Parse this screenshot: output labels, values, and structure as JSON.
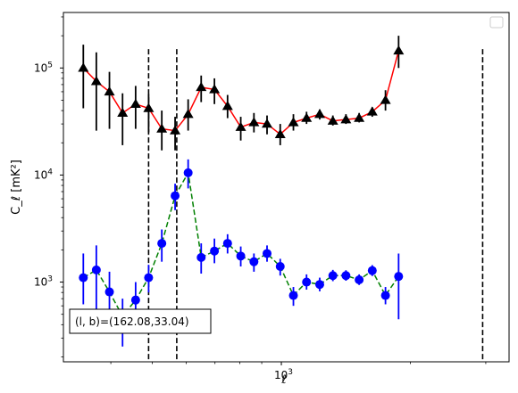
{
  "chart_data": {
    "type": "line",
    "xlabel": "ℓ",
    "ylabel": "C_ℓ  [mK²]",
    "x_scale": "log",
    "y_scale": "log",
    "xlim": [
      310,
      3400
    ],
    "ylim": [
      180,
      330000
    ],
    "x_tick_labels": [
      {
        "value": 1000,
        "label": "10",
        "exponent": "3"
      }
    ],
    "y_tick_labels": [
      {
        "value": 1000,
        "label": "10",
        "exponent": "3"
      },
      {
        "value": 10000,
        "label": "10",
        "exponent": "4"
      },
      {
        "value": 100000,
        "label": "10",
        "exponent": "5"
      }
    ],
    "legend": {
      "placement": "top-right",
      "entries": []
    },
    "vlines": [
      490,
      570,
      2950
    ],
    "annotation": "(l, b)=(162.08,33.04)",
    "series": [
      {
        "color": "#ff0000",
        "marker": "triangle",
        "marker_color": "#000000",
        "linestyle": "solid",
        "points": [
          {
            "x": 345,
            "y": 100000,
            "lo": 42000,
            "hi": 165000
          },
          {
            "x": 370,
            "y": 75000,
            "lo": 26000,
            "hi": 140000
          },
          {
            "x": 397,
            "y": 60000,
            "lo": 27000,
            "hi": 92000
          },
          {
            "x": 426,
            "y": 38000,
            "lo": 19000,
            "hi": 58000
          },
          {
            "x": 457,
            "y": 46000,
            "lo": 27000,
            "hi": 68000
          },
          {
            "x": 490,
            "y": 42000,
            "lo": 25000,
            "hi": 57000
          },
          {
            "x": 526,
            "y": 27000,
            "lo": 17000,
            "hi": 40000
          },
          {
            "x": 565,
            "y": 26000,
            "lo": 17000,
            "hi": 35000
          },
          {
            "x": 606,
            "y": 37000,
            "lo": 26000,
            "hi": 51000
          },
          {
            "x": 650,
            "y": 66000,
            "lo": 48000,
            "hi": 85000
          },
          {
            "x": 698,
            "y": 63000,
            "lo": 46000,
            "hi": 80000
          },
          {
            "x": 749,
            "y": 44000,
            "lo": 34000,
            "hi": 56000
          },
          {
            "x": 804,
            "y": 28000,
            "lo": 21000,
            "hi": 35000
          },
          {
            "x": 863,
            "y": 31000,
            "lo": 25000,
            "hi": 38000
          },
          {
            "x": 926,
            "y": 30000,
            "lo": 24000,
            "hi": 36000
          },
          {
            "x": 994,
            "y": 24000,
            "lo": 19000,
            "hi": 30000
          },
          {
            "x": 1067,
            "y": 31000,
            "lo": 26000,
            "hi": 37000
          },
          {
            "x": 1145,
            "y": 34000,
            "lo": 30000,
            "hi": 39000
          },
          {
            "x": 1229,
            "y": 37000,
            "lo": 33000,
            "hi": 41000
          },
          {
            "x": 1319,
            "y": 32000,
            "lo": 29000,
            "hi": 36000
          },
          {
            "x": 1415,
            "y": 33000,
            "lo": 30000,
            "hi": 37000
          },
          {
            "x": 1519,
            "y": 34000,
            "lo": 31000,
            "hi": 38000
          },
          {
            "x": 1630,
            "y": 39000,
            "lo": 35000,
            "hi": 43000
          },
          {
            "x": 1750,
            "y": 50000,
            "lo": 40000,
            "hi": 62000
          },
          {
            "x": 1878,
            "y": 145000,
            "lo": 100000,
            "hi": 200000
          }
        ]
      },
      {
        "color": "#008000",
        "marker": "circle",
        "marker_color": "#0000ff",
        "linestyle": "dashed",
        "points": [
          {
            "x": 345,
            "y": 1100,
            "lo": 620,
            "hi": 1850
          },
          {
            "x": 370,
            "y": 1300,
            "lo": 420,
            "hi": 2200
          },
          {
            "x": 397,
            "y": 810,
            "lo": 400,
            "hi": 1250
          },
          {
            "x": 426,
            "y": 480,
            "lo": 250,
            "hi": 700
          },
          {
            "x": 457,
            "y": 680,
            "lo": 380,
            "hi": 1000
          },
          {
            "x": 490,
            "y": 1100,
            "lo": 800,
            "hi": 1450
          },
          {
            "x": 526,
            "y": 2300,
            "lo": 1550,
            "hi": 3100
          },
          {
            "x": 565,
            "y": 6400,
            "lo": 4700,
            "hi": 8300
          },
          {
            "x": 606,
            "y": 10500,
            "lo": 7500,
            "hi": 14000
          },
          {
            "x": 650,
            "y": 1700,
            "lo": 1200,
            "hi": 2300
          },
          {
            "x": 698,
            "y": 1950,
            "lo": 1500,
            "hi": 2550
          },
          {
            "x": 749,
            "y": 2300,
            "lo": 1850,
            "hi": 2800
          },
          {
            "x": 804,
            "y": 1750,
            "lo": 1400,
            "hi": 2150
          },
          {
            "x": 863,
            "y": 1550,
            "lo": 1250,
            "hi": 1850
          },
          {
            "x": 926,
            "y": 1850,
            "lo": 1550,
            "hi": 2200
          },
          {
            "x": 994,
            "y": 1400,
            "lo": 1150,
            "hi": 1650
          },
          {
            "x": 1067,
            "y": 750,
            "lo": 600,
            "hi": 900
          },
          {
            "x": 1145,
            "y": 1000,
            "lo": 850,
            "hi": 1180
          },
          {
            "x": 1229,
            "y": 950,
            "lo": 820,
            "hi": 1100
          },
          {
            "x": 1319,
            "y": 1150,
            "lo": 1020,
            "hi": 1300
          },
          {
            "x": 1415,
            "y": 1150,
            "lo": 1030,
            "hi": 1290
          },
          {
            "x": 1519,
            "y": 1050,
            "lo": 940,
            "hi": 1180
          },
          {
            "x": 1630,
            "y": 1280,
            "lo": 1140,
            "hi": 1440
          },
          {
            "x": 1750,
            "y": 750,
            "lo": 620,
            "hi": 900
          },
          {
            "x": 1878,
            "y": 1130,
            "lo": 450,
            "hi": 1850
          }
        ]
      }
    ]
  }
}
